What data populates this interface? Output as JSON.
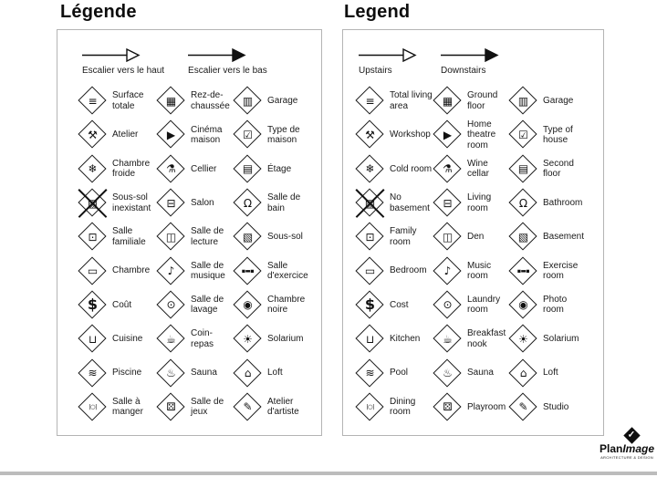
{
  "panels": [
    {
      "id": "fr",
      "title": "Légende",
      "arrows": [
        {
          "label": "Escalier vers le haut",
          "style": "open"
        },
        {
          "label": "Escalier vers le bas",
          "style": "filled"
        }
      ],
      "items": [
        {
          "icon": "total-living-area",
          "label": "Surface totale"
        },
        {
          "icon": "ground-floor",
          "label": "Rez-de-chaussée"
        },
        {
          "icon": "garage",
          "label": "Garage"
        },
        {
          "icon": "workshop",
          "label": "Atelier"
        },
        {
          "icon": "home-theatre",
          "label": "Cinéma maison"
        },
        {
          "icon": "type-of-house",
          "label": "Type de maison"
        },
        {
          "icon": "cold-room",
          "label": "Chambre froide"
        },
        {
          "icon": "wine-cellar",
          "label": "Cellier"
        },
        {
          "icon": "second-floor",
          "label": "Étage"
        },
        {
          "icon": "no-basement",
          "label": "Sous-sol inexistant",
          "crossed": true
        },
        {
          "icon": "living-room",
          "label": "Salon"
        },
        {
          "icon": "bathroom",
          "label": "Salle de bain"
        },
        {
          "icon": "family-room",
          "label": "Salle familiale"
        },
        {
          "icon": "den",
          "label": "Salle de lecture"
        },
        {
          "icon": "basement",
          "label": "Sous-sol"
        },
        {
          "icon": "bedroom",
          "label": "Chambre"
        },
        {
          "icon": "music-room",
          "label": "Salle de musique"
        },
        {
          "icon": "exercise-room",
          "label": "Salle d'exercice"
        },
        {
          "icon": "cost",
          "label": "Coût"
        },
        {
          "icon": "laundry-room",
          "label": "Salle de lavage"
        },
        {
          "icon": "photo-room",
          "label": "Chambre noire"
        },
        {
          "icon": "kitchen",
          "label": "Cuisine"
        },
        {
          "icon": "breakfast-nook",
          "label": "Coin-repas"
        },
        {
          "icon": "solarium",
          "label": "Solarium"
        },
        {
          "icon": "pool",
          "label": "Piscine"
        },
        {
          "icon": "sauna",
          "label": "Sauna"
        },
        {
          "icon": "loft",
          "label": "Loft"
        },
        {
          "icon": "dining-room",
          "label": "Salle à manger"
        },
        {
          "icon": "playroom",
          "label": "Salle de jeux"
        },
        {
          "icon": "studio",
          "label": "Atelier d'artiste"
        }
      ]
    },
    {
      "id": "en",
      "title": "Legend",
      "arrows": [
        {
          "label": "Upstairs",
          "style": "open"
        },
        {
          "label": "Downstairs",
          "style": "filled"
        }
      ],
      "items": [
        {
          "icon": "total-living-area",
          "label": "Total living area"
        },
        {
          "icon": "ground-floor",
          "label": "Ground floor"
        },
        {
          "icon": "garage",
          "label": "Garage"
        },
        {
          "icon": "workshop",
          "label": "Workshop"
        },
        {
          "icon": "home-theatre",
          "label": "Home theatre room"
        },
        {
          "icon": "type-of-house",
          "label": "Type of house"
        },
        {
          "icon": "cold-room",
          "label": "Cold room"
        },
        {
          "icon": "wine-cellar",
          "label": "Wine cellar"
        },
        {
          "icon": "second-floor",
          "label": "Second floor"
        },
        {
          "icon": "no-basement",
          "label": "No basement",
          "crossed": true
        },
        {
          "icon": "living-room",
          "label": "Living room"
        },
        {
          "icon": "bathroom",
          "label": "Bathroom"
        },
        {
          "icon": "family-room",
          "label": "Family room"
        },
        {
          "icon": "den",
          "label": "Den"
        },
        {
          "icon": "basement",
          "label": "Basement"
        },
        {
          "icon": "bedroom",
          "label": "Bedroom"
        },
        {
          "icon": "music-room",
          "label": "Music room"
        },
        {
          "icon": "exercise-room",
          "label": "Exercise room"
        },
        {
          "icon": "cost",
          "label": "Cost"
        },
        {
          "icon": "laundry-room",
          "label": "Laundry room"
        },
        {
          "icon": "photo-room",
          "label": "Photo room"
        },
        {
          "icon": "kitchen",
          "label": "Kitchen"
        },
        {
          "icon": "breakfast-nook",
          "label": "Breakfast nook"
        },
        {
          "icon": "solarium",
          "label": "Solarium"
        },
        {
          "icon": "pool",
          "label": "Pool"
        },
        {
          "icon": "sauna",
          "label": "Sauna"
        },
        {
          "icon": "loft",
          "label": "Loft"
        },
        {
          "icon": "dining-room",
          "label": "Dining room"
        },
        {
          "icon": "playroom",
          "label": "Playroom"
        },
        {
          "icon": "studio",
          "label": "Studio"
        }
      ]
    }
  ],
  "logo": {
    "brand_bold": "Plan",
    "brand_italic": "Image",
    "tagline": "ARCHITECTURE & DESIGN",
    "mark_glyph": "✓"
  },
  "colors": {
    "text": "#111111",
    "panel_border": "#b4b4b4",
    "icon_stroke": "#1a1a1a",
    "bottom_bar": "#bcbcbc"
  }
}
